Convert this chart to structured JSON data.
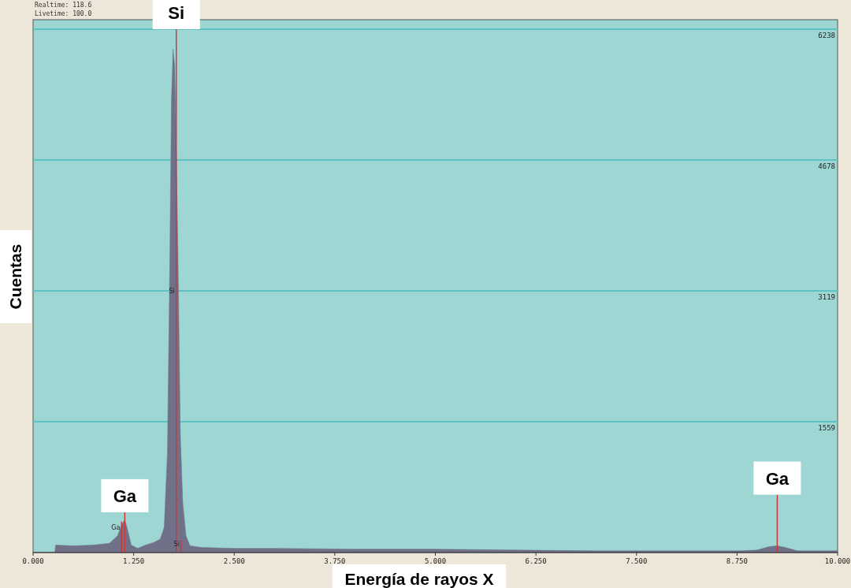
{
  "chart_data": {
    "type": "area",
    "xlabel": "Energía de rayos X",
    "ylabel": "Cuentas",
    "annotations": [
      "Realtime: 118.6",
      "Livetime: 100.0",
      {
        "text": "Si",
        "x": 1.78,
        "y": 6238
      },
      {
        "text": "Ga",
        "x": 1.14,
        "y": 480
      },
      {
        "text": "Ga",
        "x": 9.25,
        "y": 690
      },
      {
        "text": "Ga",
        "x": 1.1,
        "y": 300
      },
      {
        "text": "Si",
        "x": 1.78,
        "y": 3119
      },
      {
        "text": "Si",
        "x": 1.84,
        "y": 100
      }
    ],
    "x": [
      0.27,
      0.28,
      0.5,
      0.75,
      0.95,
      1.05,
      1.1,
      1.14,
      1.18,
      1.22,
      1.3,
      1.4,
      1.5,
      1.58,
      1.63,
      1.67,
      1.7,
      1.72,
      1.74,
      1.76,
      1.8,
      1.83,
      1.86,
      1.9,
      1.95,
      2.1,
      2.5,
      3,
      4,
      5,
      6,
      7,
      8,
      8.8,
      9,
      9.15,
      9.25,
      9.35,
      9.5,
      10
    ],
    "series": [
      {
        "color": "#707088",
        "values": [
          0,
          90,
          80,
          90,
          110,
          200,
          330,
          390,
          250,
          90,
          50,
          90,
          120,
          160,
          300,
          1200,
          3500,
          5400,
          6000,
          5800,
          3600,
          1400,
          600,
          200,
          80,
          60,
          50,
          50,
          40,
          40,
          30,
          20,
          20,
          20,
          30,
          70,
          80,
          60,
          20,
          20
        ]
      },
      {
        "type": "bar",
        "color": "#d03838",
        "x": [
          1.1,
          1.14,
          1.78,
          1.84,
          9.25
        ],
        "values": [
          370,
          480,
          6238,
          150,
          690
        ]
      }
    ],
    "xlim": [
      0,
      10
    ],
    "xticks": [
      {
        "value": 0,
        "label": "0.000"
      },
      {
        "value": 1.25,
        "label": "1.250"
      },
      {
        "value": 2.5,
        "label": "2.500"
      },
      {
        "value": 3.75,
        "label": "3.750"
      },
      {
        "value": 5,
        "label": "5.000"
      },
      {
        "value": 6.25,
        "label": "6.250"
      },
      {
        "value": 7.5,
        "label": "7.500"
      },
      {
        "value": 8.75,
        "label": "8.750"
      },
      {
        "value": 10,
        "label": "10.000"
      }
    ],
    "ylim": [
      0,
      6238
    ],
    "yticks": [
      1559,
      3119,
      4678,
      6238
    ],
    "grid": "y"
  }
}
